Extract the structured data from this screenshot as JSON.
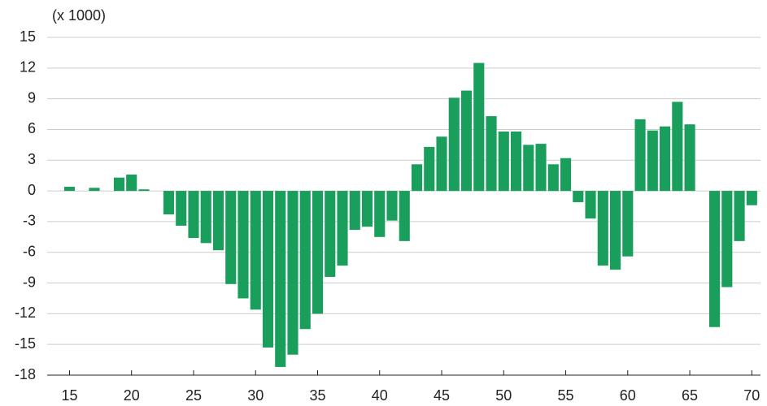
{
  "chart_data": {
    "type": "bar",
    "annotation": "(x 1000)",
    "x": [
      15,
      16,
      17,
      18,
      19,
      20,
      21,
      22,
      23,
      24,
      25,
      26,
      27,
      28,
      29,
      30,
      31,
      32,
      33,
      34,
      35,
      36,
      37,
      38,
      39,
      40,
      41,
      42,
      43,
      44,
      45,
      46,
      47,
      48,
      49,
      50,
      51,
      52,
      53,
      54,
      55,
      56,
      57,
      58,
      59,
      60,
      61,
      62,
      63,
      64,
      65,
      66,
      67,
      68,
      69,
      70
    ],
    "values": [
      0.4,
      0,
      0.3,
      0,
      1.3,
      1.6,
      0.15,
      0,
      -2.3,
      -3.4,
      -4.6,
      -5.1,
      -5.8,
      -9.1,
      -10.5,
      -11.6,
      -15.3,
      -17.2,
      -16,
      -13.5,
      -12,
      -8.4,
      -7.3,
      -3.8,
      -3.5,
      -4.5,
      -2.9,
      -4.9,
      2.6,
      4.3,
      5.3,
      9.1,
      9.8,
      12.5,
      7.3,
      5.8,
      5.8,
      4.5,
      4.6,
      2.6,
      3.2,
      -1.1,
      -2.7,
      -7.3,
      -7.7,
      -6.4,
      7,
      5.9,
      6.3,
      8.7,
      6.5,
      0,
      -13.3,
      -9.4,
      -4.9,
      -1.4
    ],
    "color": "#1a9e5c",
    "xlim": [
      13.2,
      70.7
    ],
    "xticks": [
      15,
      20,
      25,
      30,
      35,
      40,
      45,
      50,
      55,
      60,
      65,
      70
    ],
    "ylim": [
      -18,
      15
    ],
    "yticks": [
      -18,
      -15,
      -12,
      -9,
      -6,
      -3,
      0,
      3,
      6,
      9,
      12,
      15
    ],
    "grid": true
  }
}
